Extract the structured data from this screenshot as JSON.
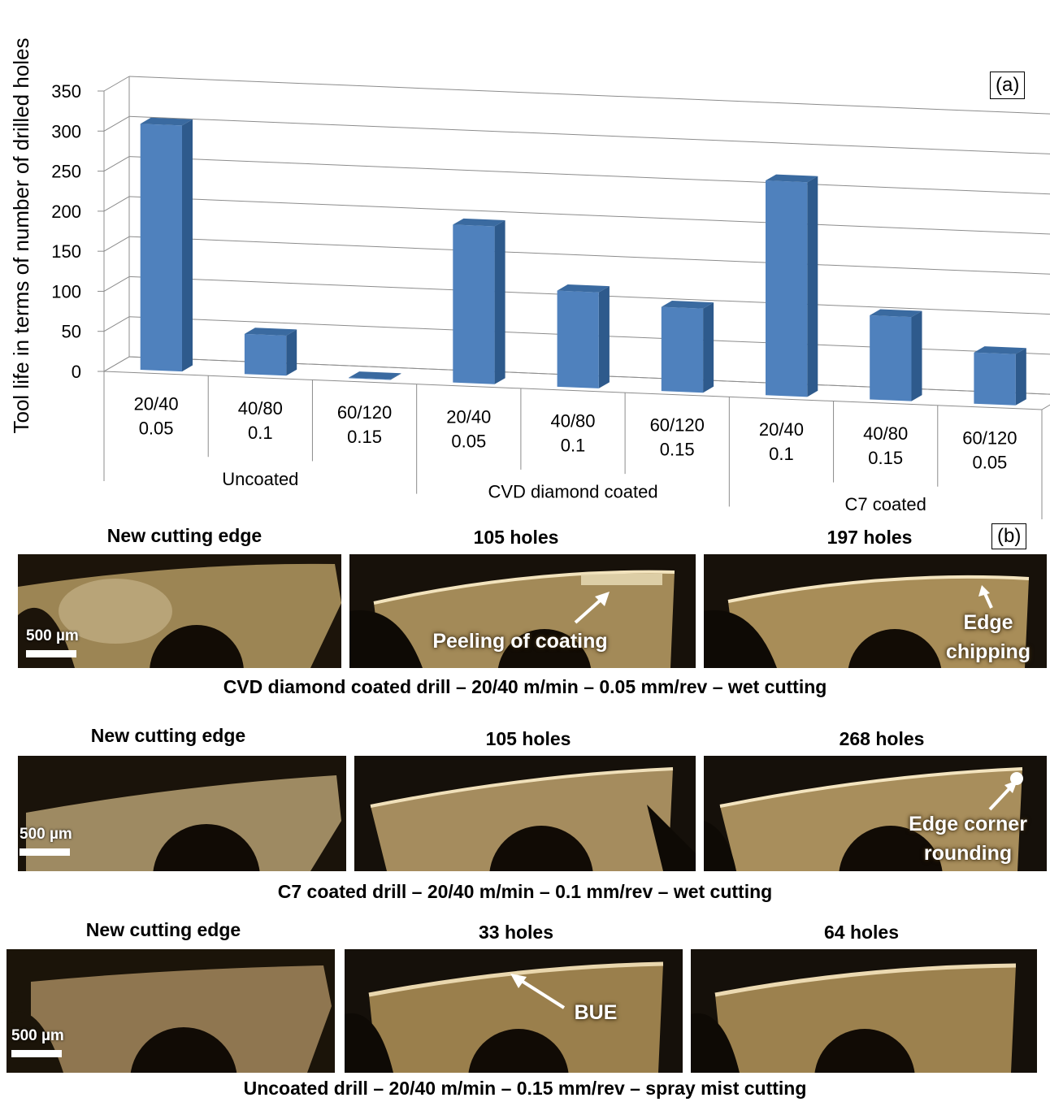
{
  "chart_data": {
    "type": "bar",
    "panel_label": "(a)",
    "ylabel": "Tool life in terms of number of drilled holes",
    "ylim": [
      0,
      350
    ],
    "yticks": [
      "0",
      "50",
      "100",
      "150",
      "200",
      "250",
      "300",
      "350"
    ],
    "categories": [
      {
        "line1": "20/40",
        "line2": "0.05"
      },
      {
        "line1": "40/80",
        "line2": "0.1"
      },
      {
        "line1": "60/120",
        "line2": "0.15"
      },
      {
        "line1": "20/40",
        "line2": "0.05"
      },
      {
        "line1": "40/80",
        "line2": "0.1"
      },
      {
        "line1": "60/120",
        "line2": "0.15"
      },
      {
        "line1": "20/40",
        "line2": "0.1"
      },
      {
        "line1": "40/80",
        "line2": "0.15"
      },
      {
        "line1": "60/120",
        "line2": "0.05"
      }
    ],
    "groups": [
      "Uncoated",
      "CVD diamond coated",
      "C7 coated"
    ],
    "values": [
      307,
      50,
      0,
      197,
      120,
      105,
      268,
      105,
      64
    ],
    "bar_color": "#4f81bd",
    "grid": true,
    "style": "3d-column"
  },
  "panel_b": {
    "label": "(b)",
    "rows": [
      {
        "headers": [
          "New cutting edge",
          "105 holes",
          "197 holes"
        ],
        "scale": "500 µm",
        "annotations": [
          "Peeling of coating",
          "Edge",
          "chipping"
        ],
        "caption": "CVD diamond coated drill – 20/40 m/min – 0.05 mm/rev – wet cutting"
      },
      {
        "headers": [
          "New cutting edge",
          "105 holes",
          "268 holes"
        ],
        "scale": "500 µm",
        "annotations": [
          "Edge corner",
          "rounding"
        ],
        "caption": "C7 coated drill – 20/40 m/min – 0.1 mm/rev – wet cutting"
      },
      {
        "headers": [
          "New cutting edge",
          "33 holes",
          "64 holes"
        ],
        "scale": "500 µm",
        "annotations": [
          "BUE"
        ],
        "caption": "Uncoated drill – 20/40 m/min – 0.15 mm/rev – spray mist cutting"
      }
    ]
  }
}
